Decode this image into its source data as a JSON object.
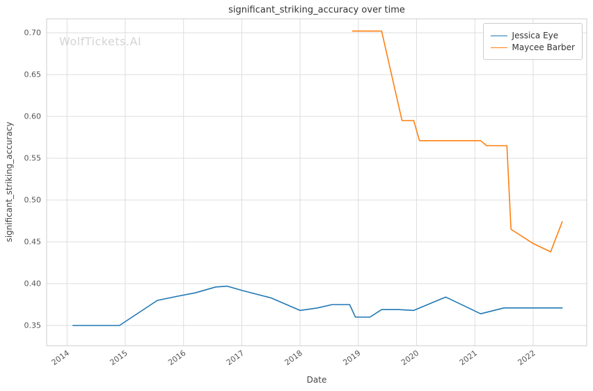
{
  "watermark": "WolfTickets.AI",
  "chart_data": {
    "type": "line",
    "title": "significant_striking_accuracy over time",
    "xlabel": "Date",
    "ylabel": "significant_striking_accuracy",
    "grid": true,
    "legend_position": "upper right",
    "xlim": [
      2013.65,
      2022.92
    ],
    "ylim": [
      0.3258,
      0.7167
    ],
    "x_ticks": [
      {
        "v": 2014,
        "label": "2014"
      },
      {
        "v": 2015,
        "label": "2015"
      },
      {
        "v": 2016,
        "label": "2016"
      },
      {
        "v": 2017,
        "label": "2017"
      },
      {
        "v": 2018,
        "label": "2018"
      },
      {
        "v": 2019,
        "label": "2019"
      },
      {
        "v": 2020,
        "label": "2020"
      },
      {
        "v": 2021,
        "label": "2021"
      },
      {
        "v": 2022,
        "label": "2022"
      }
    ],
    "y_ticks": [
      {
        "v": 0.35,
        "label": "0.35"
      },
      {
        "v": 0.4,
        "label": "0.40"
      },
      {
        "v": 0.45,
        "label": "0.45"
      },
      {
        "v": 0.5,
        "label": "0.50"
      },
      {
        "v": 0.55,
        "label": "0.55"
      },
      {
        "v": 0.6,
        "label": "0.60"
      },
      {
        "v": 0.65,
        "label": "0.65"
      },
      {
        "v": 0.7,
        "label": "0.70"
      }
    ],
    "series": [
      {
        "name": "Jessica Eye",
        "color": "#1f77b4",
        "x": [
          2014.1,
          2014.9,
          2015.55,
          2015.9,
          2016.2,
          2016.55,
          2016.75,
          2017.0,
          2017.5,
          2018.0,
          2018.3,
          2018.55,
          2018.85,
          2018.95,
          2019.2,
          2019.4,
          2019.7,
          2019.95,
          2020.5,
          2021.1,
          2021.5,
          2022.0,
          2022.5
        ],
        "y": [
          0.35,
          0.35,
          0.38,
          0.385,
          0.389,
          0.396,
          0.397,
          0.392,
          0.383,
          0.368,
          0.371,
          0.375,
          0.375,
          0.36,
          0.36,
          0.369,
          0.369,
          0.368,
          0.384,
          0.364,
          0.371,
          0.371,
          0.371
        ]
      },
      {
        "name": "Maycee Barber",
        "color": "#ff7f0e",
        "x": [
          2018.9,
          2019.4,
          2019.75,
          2019.95,
          2020.05,
          2021.1,
          2021.2,
          2021.55,
          2021.62,
          2022.0,
          2022.3,
          2022.5
        ],
        "y": [
          0.702,
          0.702,
          0.595,
          0.595,
          0.571,
          0.571,
          0.565,
          0.565,
          0.465,
          0.448,
          0.438,
          0.474
        ]
      }
    ]
  }
}
